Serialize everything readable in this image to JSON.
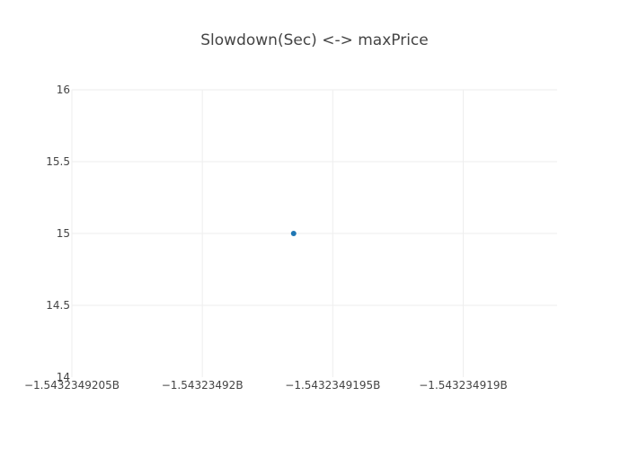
{
  "chart_data": {
    "type": "scatter",
    "title": "Slowdown(Sec) <-> maxPrice",
    "xlabel": "",
    "ylabel": "",
    "x_ticks": [
      "−1.5432349205B",
      "−1.54323492B",
      "−1.5432349195B",
      "−1.543234919B"
    ],
    "x_tick_values": [
      -1543234920.5,
      -1543234920.0,
      -1543234919.5,
      -1543234919.0
    ],
    "y_ticks": [
      "14",
      "14.5",
      "15",
      "15.5",
      "16"
    ],
    "y_tick_values": [
      14,
      14.5,
      15,
      15.5,
      16
    ],
    "xlim": [
      -1543234920.5,
      -1543234918.64
    ],
    "ylim": [
      14,
      16
    ],
    "grid": true,
    "series": [
      {
        "points": [
          {
            "x": -1543234919.65,
            "y": 15
          }
        ],
        "color": "#1f77b4"
      }
    ]
  },
  "colors": {
    "grid": "#eeeeee",
    "text": "#444444",
    "marker": "#1f77b4"
  }
}
